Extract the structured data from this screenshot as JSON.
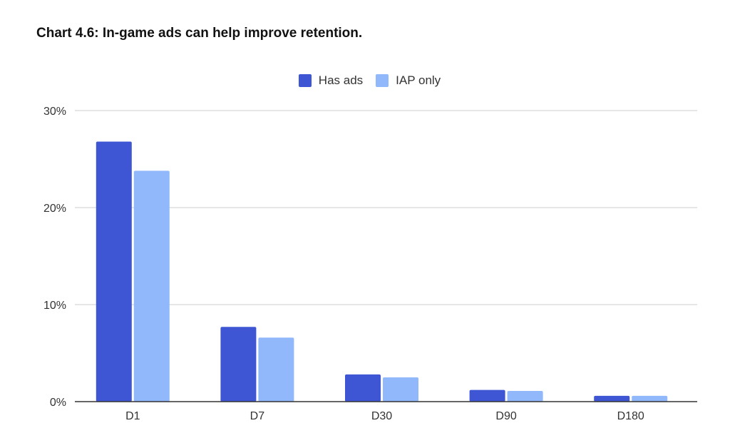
{
  "chart_data": {
    "type": "bar",
    "title": "Chart 4.6: In-game ads can help improve retention.",
    "xlabel": "",
    "ylabel": "",
    "categories": [
      "D1",
      "D7",
      "D30",
      "D90",
      "D180"
    ],
    "series": [
      {
        "name": "Has ads",
        "color": "#3f56d4",
        "values": [
          26.8,
          7.7,
          2.8,
          1.2,
          0.6
        ]
      },
      {
        "name": "IAP only",
        "color": "#90b8fb",
        "values": [
          23.8,
          6.6,
          2.5,
          1.1,
          0.6
        ]
      }
    ],
    "ylim": [
      0,
      30
    ],
    "yticks": [
      0,
      10,
      20,
      30
    ],
    "ytick_labels": [
      "0%",
      "10%",
      "20%",
      "30%"
    ],
    "grid": true,
    "legend_position": "top-center",
    "colors": {
      "gridline": "#cccccc",
      "axis": "#333333"
    }
  }
}
